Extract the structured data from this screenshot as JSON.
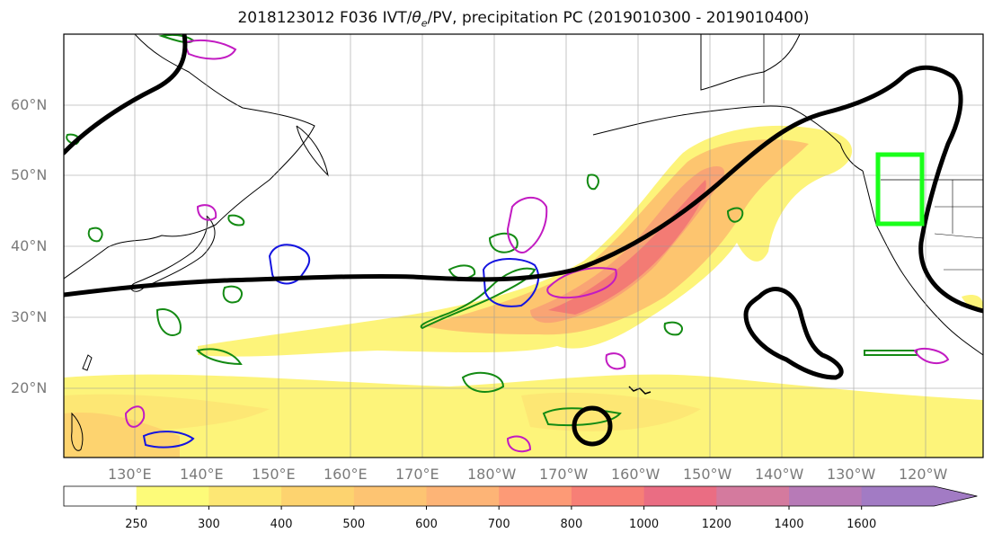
{
  "title": {
    "prefix": "2018123012 F036 IVT/",
    "theta": "θ",
    "theta_sub": "e",
    "suffix": "/PV, precipitation PC (2019010300 - 2019010400)"
  },
  "lat_labels": [
    "60°N",
    "50°N",
    "40°N",
    "30°N",
    "20°N"
  ],
  "lon_labels": [
    "130°E",
    "140°E",
    "150°E",
    "160°E",
    "170°E",
    "180°W",
    "170°W",
    "160°W",
    "150°W",
    "140°W",
    "130°W",
    "120°W"
  ],
  "colorbar": {
    "labels": [
      "250",
      "300",
      "400",
      "500",
      "600",
      "700",
      "800",
      "1000",
      "1200",
      "1400",
      "1600"
    ],
    "colors": [
      "#ffffff",
      "#fdfb79",
      "#fde774",
      "#fdd36f",
      "#fdc472",
      "#fdb476",
      "#fd9a76",
      "#f77f76",
      "#ea6d83",
      "#d47a9e",
      "#b77ab7",
      "#a27bc4"
    ]
  },
  "colors": {
    "ivt_light": "#fdf47a",
    "ivt_mid": "#fdc56f",
    "ivt_core": "#f37b74",
    "theta_contour": "#000000",
    "pv_green": "#138a13",
    "pv_magenta": "#c21bc2",
    "pv_blue": "#1414e0",
    "box_green": "#1aff1a"
  }
}
